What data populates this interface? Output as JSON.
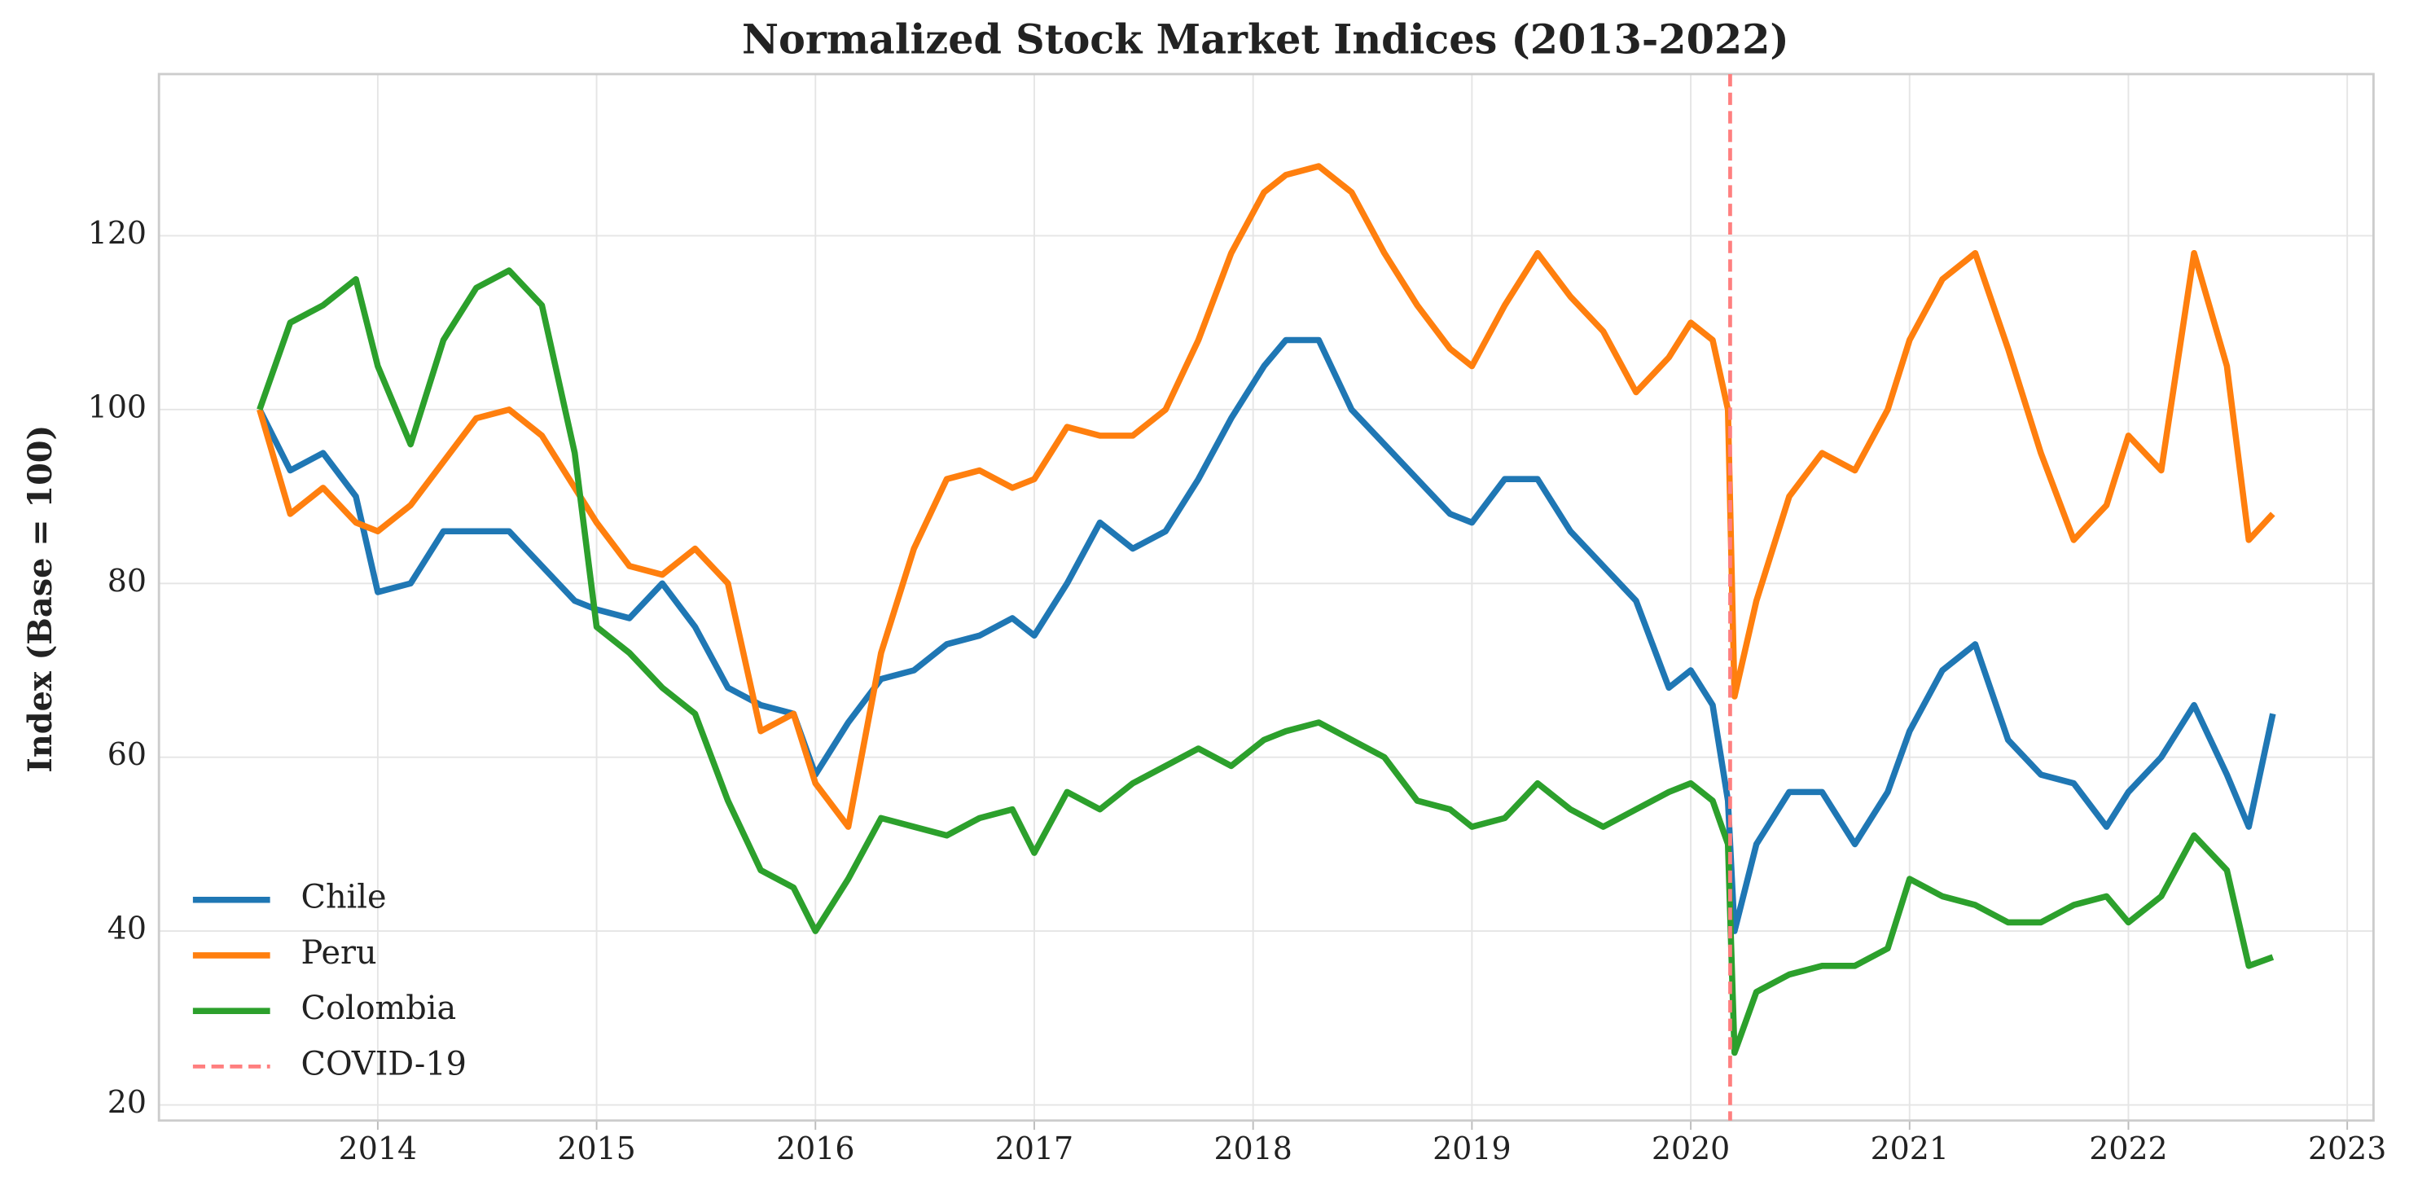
{
  "chart_data": {
    "type": "line",
    "title": "Normalized Stock Market Indices (2013-2022)",
    "y_label": "Index (Base = 100)",
    "x": [
      2013.46,
      2013.6,
      2013.75,
      2013.9,
      2014.0,
      2014.15,
      2014.3,
      2014.45,
      2014.6,
      2014.75,
      2014.9,
      2015.0,
      2015.15,
      2015.3,
      2015.45,
      2015.6,
      2015.75,
      2015.9,
      2016.0,
      2016.15,
      2016.3,
      2016.45,
      2016.6,
      2016.75,
      2016.9,
      2017.0,
      2017.15,
      2017.3,
      2017.45,
      2017.6,
      2017.75,
      2017.9,
      2018.05,
      2018.15,
      2018.3,
      2018.45,
      2018.6,
      2018.75,
      2018.9,
      2019.0,
      2019.15,
      2019.3,
      2019.45,
      2019.6,
      2019.75,
      2019.9,
      2020.0,
      2020.1,
      2020.17,
      2020.2,
      2020.3,
      2020.45,
      2020.6,
      2020.75,
      2020.9,
      2021.0,
      2021.15,
      2021.3,
      2021.45,
      2021.6,
      2021.75,
      2021.9,
      2022.0,
      2022.15,
      2022.3,
      2022.45,
      2022.55,
      2022.66
    ],
    "series": [
      {
        "name": "Chile",
        "color": "#1f77b4",
        "values": [
          100,
          93,
          95,
          90,
          79,
          80,
          86,
          86,
          86,
          82,
          78,
          77,
          76,
          80,
          75,
          68,
          66,
          65,
          58,
          64,
          69,
          70,
          73,
          74,
          76,
          74,
          80,
          87,
          84,
          86,
          92,
          99,
          105,
          108,
          108,
          100,
          96,
          92,
          88,
          87,
          92,
          92,
          86,
          82,
          78,
          68,
          70,
          66,
          55,
          40,
          50,
          56,
          56,
          50,
          56,
          63,
          70,
          73,
          62,
          58,
          57,
          52,
          56,
          60,
          66,
          58,
          52,
          65
        ]
      },
      {
        "name": "Peru",
        "color": "#ff7f0e",
        "values": [
          100,
          88,
          91,
          87,
          86,
          89,
          94,
          99,
          100,
          97,
          91,
          87,
          82,
          81,
          84,
          80,
          63,
          65,
          57,
          52,
          72,
          84,
          92,
          93,
          91,
          92,
          98,
          97,
          97,
          100,
          108,
          118,
          125,
          127,
          128,
          125,
          118,
          112,
          107,
          105,
          112,
          118,
          113,
          109,
          102,
          106,
          110,
          108,
          100,
          67,
          78,
          90,
          95,
          93,
          100,
          108,
          115,
          118,
          107,
          95,
          85,
          89,
          97,
          93,
          118,
          105,
          85,
          88
        ]
      },
      {
        "name": "Colombia",
        "color": "#2ca02c",
        "values": [
          100,
          110,
          112,
          115,
          105,
          96,
          108,
          114,
          116,
          112,
          95,
          75,
          72,
          68,
          65,
          55,
          47,
          45,
          40,
          46,
          53,
          52,
          51,
          53,
          54,
          49,
          56,
          54,
          57,
          59,
          61,
          59,
          62,
          63,
          64,
          62,
          60,
          55,
          54,
          52,
          53,
          57,
          54,
          52,
          54,
          56,
          57,
          55,
          50,
          26,
          33,
          35,
          36,
          36,
          38,
          46,
          44,
          43,
          41,
          41,
          43,
          44,
          41,
          44,
          51,
          47,
          36,
          37
        ]
      }
    ],
    "vlines": [
      {
        "name": "COVID-19",
        "x": 2020.18,
        "color": "#ff7f7f"
      }
    ],
    "xlim": [
      2013.0,
      2023.12
    ],
    "xticks": [
      2014,
      2015,
      2016,
      2017,
      2018,
      2019,
      2020,
      2021,
      2022,
      2023
    ],
    "ylim": [
      18.2,
      138.6
    ],
    "yticks": [
      20,
      40,
      60,
      80,
      100,
      120
    ],
    "grid": true,
    "legend": "lower-left"
  }
}
